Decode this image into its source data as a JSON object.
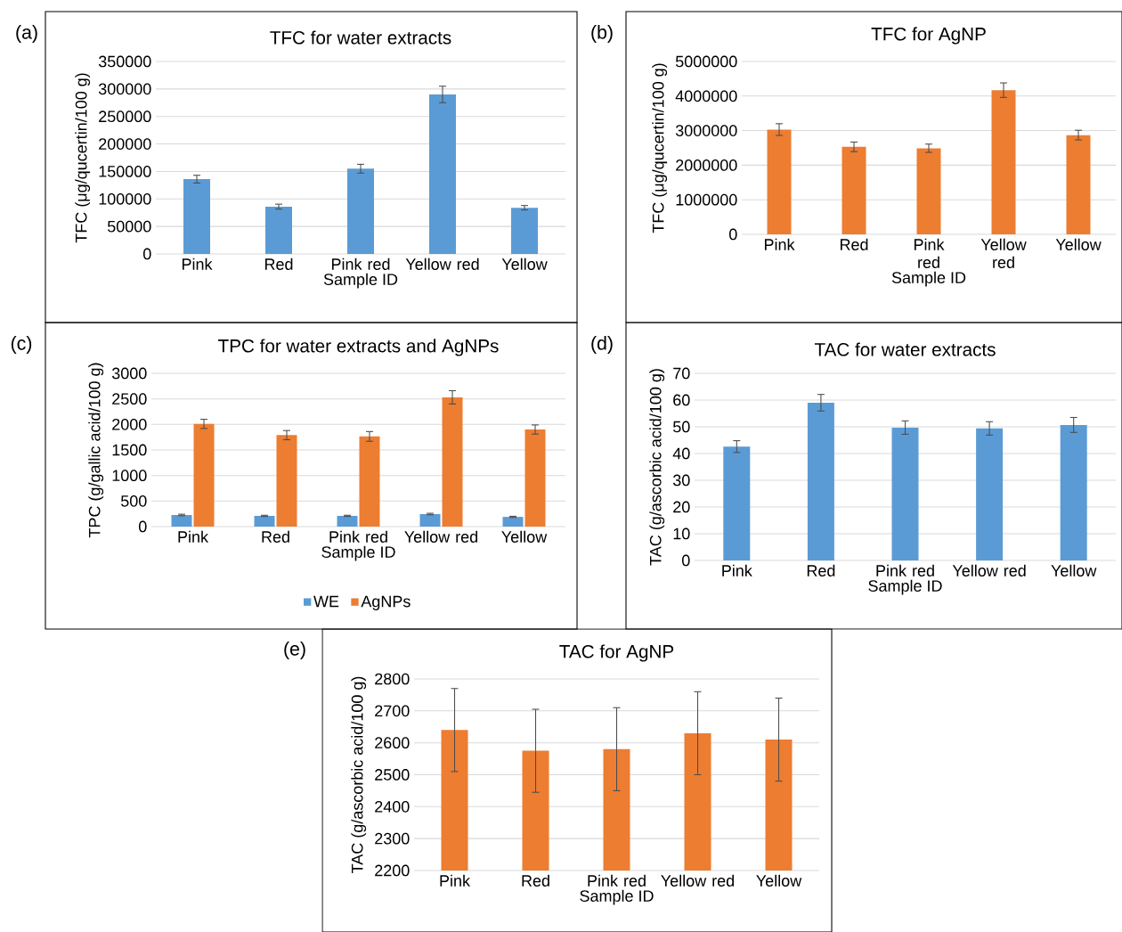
{
  "chart_data": [
    {
      "type": "bar",
      "title": "TFC for water extracts",
      "xlabel": "Sample ID",
      "ylabel": "TFC (μg/qucertin/100 g)",
      "annotations": [
        "(a)"
      ],
      "categories": [
        "Pink",
        "Red",
        "Pink red",
        "Yellow red",
        "Yellow"
      ],
      "series": [
        {
          "color": "#5b9bd5",
          "values": [
            136000,
            86000,
            155000,
            290000,
            84000
          ],
          "errors": [
            7000,
            4500,
            8000,
            15000,
            4000
          ]
        }
      ],
      "ylim": [
        0,
        350000
      ],
      "yticks": [
        0,
        50000,
        100000,
        150000,
        200000,
        250000,
        300000,
        350000
      ],
      "grid": "y"
    },
    {
      "type": "bar",
      "title": "TFC for AgNP",
      "xlabel": "Sample ID",
      "ylabel": "TFC (μg/qucertin/100 g)",
      "annotations": [
        "(b)"
      ],
      "categories": [
        "Pink",
        "Red",
        "Pink red",
        "Yellow red",
        "Yellow"
      ],
      "series": [
        {
          "color": "#ed7d31",
          "values": [
            3030000,
            2530000,
            2490000,
            4170000,
            2870000
          ],
          "errors": [
            170000,
            140000,
            120000,
            210000,
            140000
          ]
        }
      ],
      "ylim": [
        0,
        5000000
      ],
      "yticks": [
        0,
        1000000,
        2000000,
        3000000,
        4000000,
        5000000
      ],
      "grid": "y"
    },
    {
      "type": "bar",
      "title": "TPC for water extracts and AgNPs",
      "xlabel": "Sample ID",
      "ylabel": "TPC (g/gallic acid/100 g)",
      "annotations": [
        "(c)"
      ],
      "categories": [
        "Pink",
        "Red",
        "Pink red",
        "Yellow red",
        "Yellow"
      ],
      "series": [
        {
          "name": "WE",
          "color": "#5b9bd5",
          "values": [
            227,
            210,
            210,
            245,
            190
          ],
          "errors": [
            15,
            12,
            12,
            15,
            12
          ]
        },
        {
          "name": "AgNPs",
          "color": "#ed7d31",
          "values": [
            2010,
            1790,
            1765,
            2530,
            1900
          ],
          "errors": [
            90,
            90,
            95,
            130,
            90
          ]
        }
      ],
      "ylim": [
        0,
        3000
      ],
      "yticks": [
        0,
        500,
        1000,
        1500,
        2000,
        2500,
        3000
      ],
      "grid": "y",
      "legend": "bottom"
    },
    {
      "type": "bar",
      "title": "TAC for water extracts",
      "xlabel": "Sample ID",
      "ylabel": "TAC (g/ascorbic acid/100 g)",
      "annotations": [
        "(d)"
      ],
      "categories": [
        "Pink",
        "Red",
        "Pink red",
        "Yellow red",
        "Yellow"
      ],
      "series": [
        {
          "color": "#5b9bd5",
          "values": [
            42.6,
            59.0,
            49.7,
            49.4,
            50.7
          ],
          "errors": [
            2.2,
            3.1,
            2.5,
            2.5,
            2.8
          ]
        }
      ],
      "ylim": [
        0,
        70
      ],
      "yticks": [
        0,
        10,
        20,
        30,
        40,
        50,
        60,
        70
      ],
      "grid": "y"
    },
    {
      "type": "bar",
      "title": "TAC for AgNP",
      "xlabel": "Sample ID",
      "ylabel": "TAC (g/ascorbic acid/100 g)",
      "annotations": [
        "(e)"
      ],
      "categories": [
        "Pink",
        "Red",
        "Pink red",
        "Yellow red",
        "Yellow"
      ],
      "series": [
        {
          "color": "#ed7d31",
          "values": [
            2640,
            2575,
            2580,
            2630,
            2610
          ],
          "errors": [
            130,
            130,
            130,
            130,
            130
          ]
        }
      ],
      "ylim": [
        2200,
        2800
      ],
      "yticks": [
        2200,
        2300,
        2400,
        2500,
        2600,
        2700,
        2800
      ],
      "grid": "y"
    }
  ]
}
